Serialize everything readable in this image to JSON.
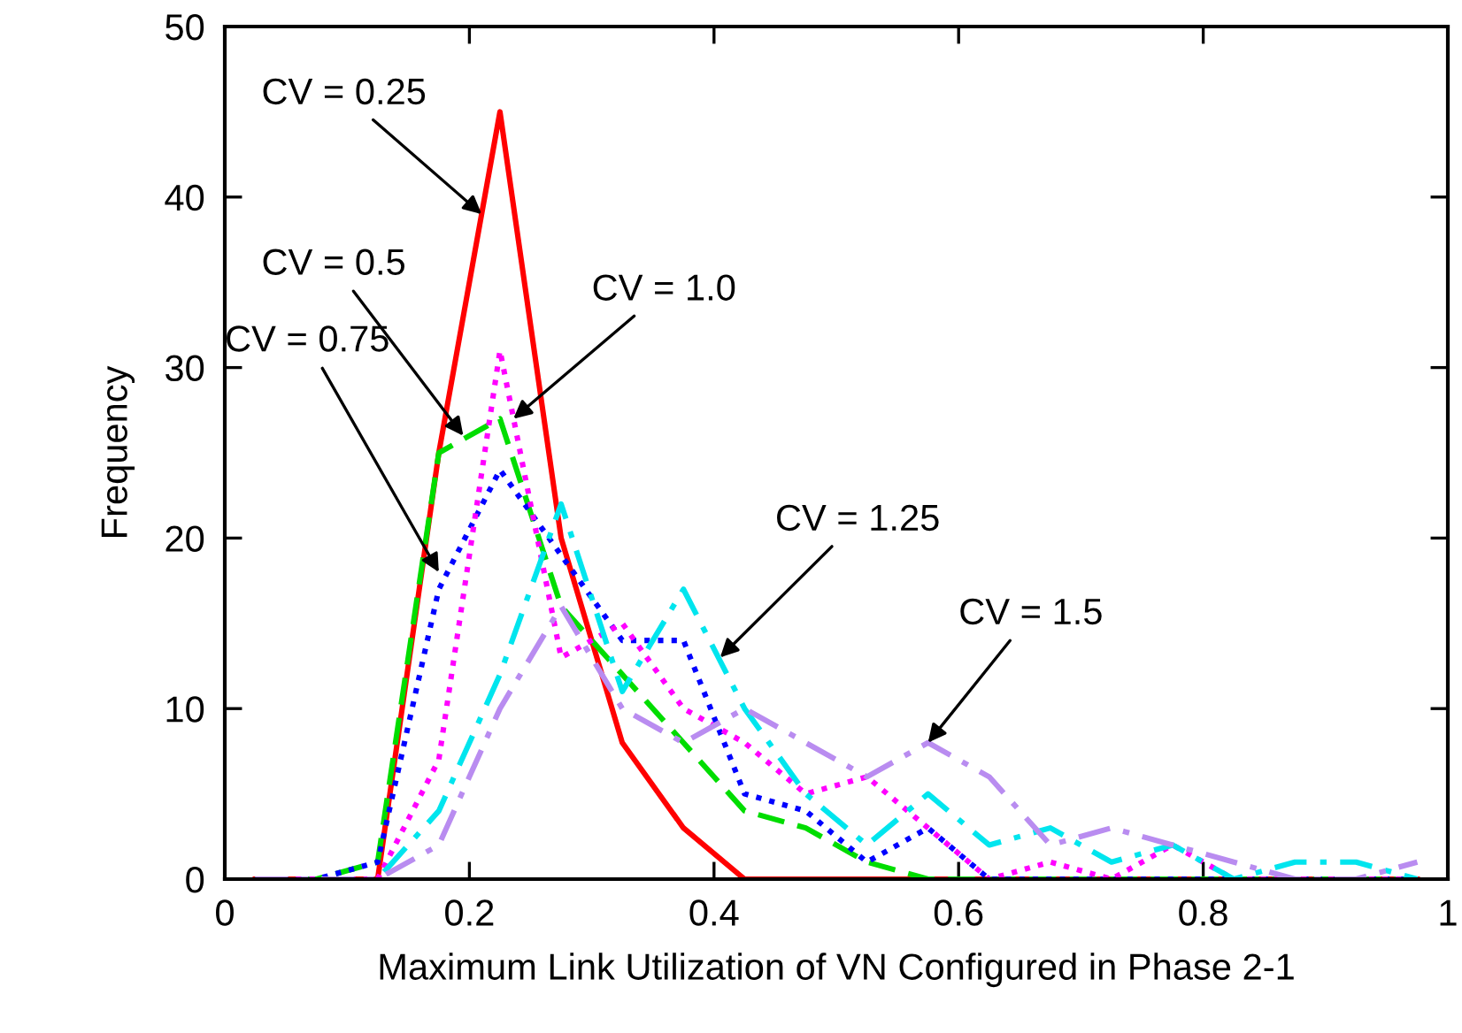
{
  "chart_data": {
    "type": "line",
    "xlabel": "Maximum Link Utilization of VN Configured in Phase 2-1",
    "ylabel": "Frequency",
    "x": [
      0.025,
      0.075,
      0.125,
      0.175,
      0.225,
      0.275,
      0.325,
      0.375,
      0.425,
      0.475,
      0.525,
      0.575,
      0.625,
      0.675,
      0.725,
      0.775,
      0.825,
      0.875,
      0.925,
      0.975
    ],
    "series": [
      {
        "color": "#ff0000",
        "line_style": "solid",
        "values": [
          0,
          0,
          0,
          25,
          45,
          20,
          8,
          3,
          0,
          0,
          0,
          0,
          0,
          0,
          0,
          0,
          0,
          0,
          0,
          0
        ]
      },
      {
        "color": "#00dd00",
        "line_style": "dashed",
        "values": [
          0,
          0,
          1,
          25,
          27,
          16,
          12,
          8,
          4,
          3,
          1,
          0,
          0,
          0,
          0,
          0,
          0,
          0,
          0,
          0
        ]
      },
      {
        "color": "#0000ff",
        "line_style": "dotted",
        "values": [
          0,
          0,
          1,
          17,
          24,
          19,
          14,
          14,
          5,
          4,
          1,
          3,
          0,
          0,
          0,
          0,
          0,
          0,
          0,
          0
        ]
      },
      {
        "color": "#ff00ff",
        "line_style": "dotted",
        "values": [
          0,
          0,
          0,
          7,
          31,
          13,
          15,
          10,
          8,
          5,
          6,
          3,
          0,
          1,
          0,
          2,
          0,
          0,
          0,
          0
        ]
      },
      {
        "color": "#00e5ee",
        "line_style": "dashdot",
        "values": [
          0,
          0,
          0,
          4,
          12,
          22,
          11,
          17,
          10,
          5,
          2,
          5,
          2,
          3,
          1,
          2,
          0,
          1,
          1,
          0
        ]
      },
      {
        "color": "#b98cf0",
        "line_style": "dashdot",
        "values": [
          0,
          0,
          0,
          2,
          10,
          16,
          10,
          8,
          10,
          8,
          6,
          8,
          6,
          2,
          3,
          2,
          1,
          0,
          0,
          1
        ]
      }
    ],
    "xlim": [
      0,
      1
    ],
    "ylim": [
      0,
      50
    ],
    "xticks": [
      0,
      0.2,
      0.4,
      0.6,
      0.8,
      1
    ],
    "yticks": [
      0,
      10,
      20,
      30,
      40,
      50
    ],
    "grid": false,
    "legend": false,
    "annotations": [
      {
        "text": "CV = 0.25",
        "x": 0.21,
        "y": 39
      },
      {
        "text": "CV = 0.5",
        "x": 0.195,
        "y": 26
      },
      {
        "text": "CV = 0.75",
        "x": 0.175,
        "y": 18
      },
      {
        "text": "CV = 1.0",
        "x": 0.236,
        "y": 27
      },
      {
        "text": "CV = 1.25",
        "x": 0.405,
        "y": 13
      },
      {
        "text": "CV = 1.5",
        "x": 0.575,
        "y": 8
      }
    ]
  }
}
